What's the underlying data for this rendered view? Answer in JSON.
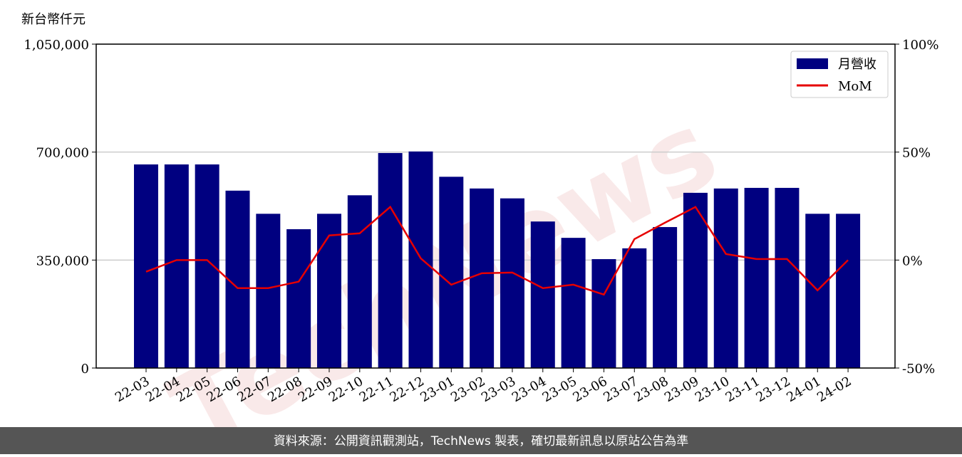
{
  "chart_data": {
    "type": "bar_line",
    "y_label": "新台幣仟元",
    "watermark": "TechNews",
    "footer": "資料來源：公開資訊觀測站，TechNews 製表，確切最新訊息以原站公告為準",
    "categories": [
      "22-03",
      "22-04",
      "22-05",
      "22-06",
      "22-07",
      "22-08",
      "22-09",
      "22-10",
      "22-11",
      "22-12",
      "23-01",
      "23-02",
      "23-03",
      "23-04",
      "23-05",
      "23-06",
      "23-07",
      "23-08",
      "23-09",
      "23-10",
      "23-11",
      "23-12",
      "24-01",
      "24-02"
    ],
    "series": [
      {
        "name": "月營收",
        "type": "bar",
        "color": "#000080",
        "values": [
          660000,
          660000,
          660000,
          575000,
          500000,
          450000,
          500000,
          560000,
          697000,
          702000,
          620000,
          582000,
          550000,
          475000,
          422000,
          353000,
          388000,
          457000,
          568000,
          582000,
          584000,
          584000,
          500000,
          500000
        ]
      },
      {
        "name": "MoM",
        "type": "line",
        "axis": "y2",
        "color": "#e60000",
        "values": [
          -5.4,
          0,
          0,
          -13,
          -13,
          -10,
          11.4,
          12.4,
          24.6,
          0.8,
          -11.4,
          -6.1,
          -5.8,
          -13,
          -11.4,
          -16,
          9.7,
          17.3,
          24.6,
          2.8,
          0.5,
          0.5,
          -14,
          0
        ]
      }
    ],
    "ylim": [
      0,
      1050000
    ],
    "yticks": [
      0,
      {
        "value": 350000,
        "label": "350,000"
      },
      {
        "value": 700000,
        "label": "700,000"
      },
      {
        "value": 1050000,
        "label": "1,050,000"
      }
    ],
    "y2lim": [
      -50,
      100
    ],
    "y2ticks": [
      {
        "value": -50,
        "label": "-50%"
      },
      {
        "value": 0,
        "label": "0%"
      },
      {
        "value": 50,
        "label": "50%"
      },
      {
        "value": 100,
        "label": "100%"
      }
    ],
    "grid": true,
    "legend": "upper right"
  }
}
